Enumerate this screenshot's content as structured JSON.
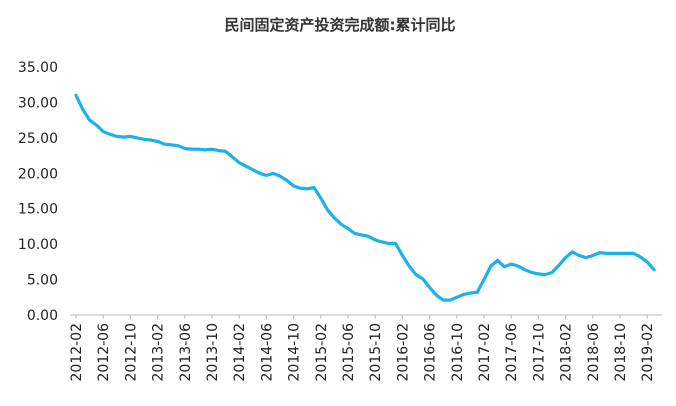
{
  "chart_data": {
    "type": "line",
    "title": "民间固定资产投资完成额:累计同比",
    "categories": [
      "2012-02",
      null,
      null,
      null,
      "2012-06",
      null,
      null,
      null,
      "2012-10",
      null,
      null,
      null,
      "2013-02",
      null,
      null,
      null,
      "2013-06",
      null,
      null,
      null,
      "2013-10",
      null,
      null,
      null,
      "2014-02",
      null,
      null,
      null,
      "2014-06",
      null,
      null,
      null,
      "2014-10",
      null,
      null,
      null,
      "2015-02",
      null,
      null,
      null,
      "2015-06",
      null,
      null,
      null,
      "2015-10",
      null,
      null,
      null,
      "2016-02",
      null,
      null,
      null,
      "2016-06",
      null,
      null,
      null,
      "2016-10",
      null,
      null,
      null,
      "2017-02",
      null,
      null,
      null,
      "2017-06",
      null,
      null,
      null,
      "2017-10",
      null,
      null,
      null,
      "2018-02",
      null,
      null,
      null,
      "2018-06",
      null,
      null,
      null,
      "2018-10",
      null,
      null,
      null,
      "2019-02",
      null
    ],
    "series": [
      {
        "name": "民间固定资产投资完成额:累计同比",
        "color": "#1cb1ea",
        "values": [
          31.0,
          29.0,
          27.5,
          26.8,
          25.9,
          25.5,
          25.2,
          25.1,
          25.2,
          25.0,
          24.8,
          24.7,
          24.5,
          24.1,
          24.0,
          23.9,
          23.5,
          23.4,
          23.4,
          23.3,
          23.4,
          23.2,
          23.1,
          22.3,
          21.5,
          21.0,
          20.5,
          20.0,
          19.7,
          20.0,
          19.6,
          19.0,
          18.2,
          17.9,
          17.8,
          18.0,
          16.5,
          14.8,
          13.7,
          12.8,
          12.2,
          11.5,
          11.3,
          11.1,
          10.6,
          10.3,
          10.1,
          10.1,
          8.4,
          6.9,
          5.7,
          5.1,
          3.9,
          2.8,
          2.1,
          2.1,
          2.5,
          2.9,
          3.1,
          3.2,
          5.0,
          6.9,
          7.7,
          6.8,
          7.2,
          6.9,
          6.4,
          6.0,
          5.8,
          5.7,
          6.0,
          7.0,
          8.1,
          8.9,
          8.4,
          8.1,
          8.4,
          8.8,
          8.7,
          8.7,
          8.7,
          8.7,
          8.7,
          8.2,
          7.5,
          6.4
        ]
      }
    ],
    "ylim": [
      0,
      35
    ],
    "yticks": [
      {
        "value": 0,
        "label": "0.00"
      },
      {
        "value": 5,
        "label": "5.00"
      },
      {
        "value": 10,
        "label": "10.00"
      },
      {
        "value": 15,
        "label": "15.00"
      },
      {
        "value": 20,
        "label": "20.00"
      },
      {
        "value": 25,
        "label": "25.00"
      },
      {
        "value": 30,
        "label": "30.00"
      },
      {
        "value": 35,
        "label": "35.00"
      }
    ],
    "grid": false
  }
}
